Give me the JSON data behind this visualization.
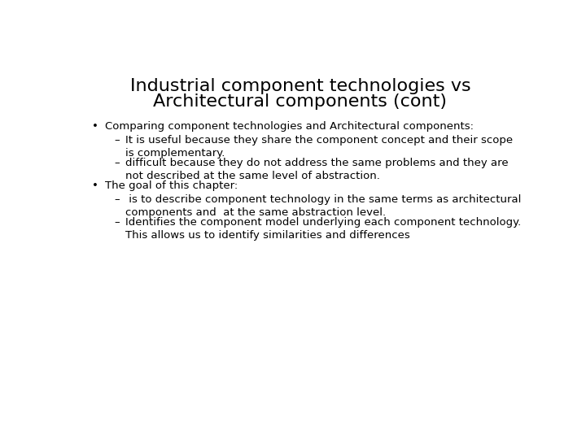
{
  "title_line1": "Industrial component technologies vs",
  "title_line2": "Architectural components (cont)",
  "background_color": "#ffffff",
  "title_fontsize": 16,
  "body_fontsize": 9.5,
  "text_color": "#000000",
  "bullets": [
    {
      "level": 1,
      "text": "Comparing component technologies and Architectural components:",
      "bold": false
    },
    {
      "level": 2,
      "text": "It is useful because they share the component concept and their scope\nis complementary.",
      "bold": false
    },
    {
      "level": 2,
      "text": "difficult because they do not address the same problems and they are\nnot described at the same level of abstraction.",
      "bold": false
    },
    {
      "level": 1,
      "text": "The goal of this chapter:",
      "bold": false
    },
    {
      "level": 2,
      "text": " is to describe component technology in the same terms as architectural\ncomponents and  at the same abstraction level.",
      "bold": false
    },
    {
      "level": 2,
      "text": "Identifies the component model underlying each component technology.\nThis allows us to identify similarities and differences",
      "bold": false
    }
  ]
}
